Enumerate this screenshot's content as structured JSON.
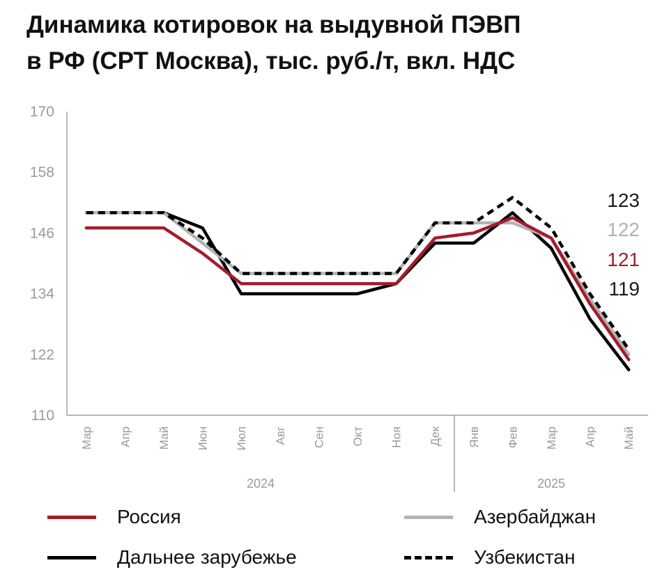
{
  "title_lines": [
    "Динамика котировок на выдувной ПЭВП",
    "в РФ (СРТ Москва), тыс. руб./т, вкл. НДС"
  ],
  "chart_data": {
    "type": "line",
    "title": "Динамика котировок на выдувной ПЭВП в РФ (СРТ Москва), тыс. руб./т, вкл. НДС",
    "categories": [
      "Мар",
      "Апр",
      "Май",
      "Июн",
      "Июл",
      "Авг",
      "Сен",
      "Окт",
      "Ноя",
      "Дек",
      "Янв",
      "Фев",
      "Мар",
      "Апр",
      "Май"
    ],
    "year_groups": [
      {
        "label": "2024",
        "start": 0,
        "end": 9
      },
      {
        "label": "2025",
        "start": 10,
        "end": 14
      }
    ],
    "ylim": [
      110,
      170
    ],
    "yticks": [
      110,
      122,
      134,
      146,
      158,
      170
    ],
    "xlabel": "",
    "ylabel": "",
    "grid": false,
    "series": [
      {
        "name": "Россия",
        "color": "#a31c2b",
        "dash": "solid",
        "values": [
          147,
          147,
          147,
          142,
          136,
          136,
          136,
          136,
          136,
          145,
          146,
          149,
          145,
          132,
          121
        ]
      },
      {
        "name": "Азербайджан",
        "color": "#b3b3b3",
        "dash": "solid",
        "values": [
          150,
          150,
          150,
          144,
          138,
          138,
          138,
          138,
          138,
          148,
          148,
          148,
          145,
          133,
          122
        ]
      },
      {
        "name": "Дальнее зарубежье",
        "color": "#000000",
        "dash": "solid",
        "values": [
          150,
          150,
          150,
          147,
          134,
          134,
          134,
          134,
          136,
          144,
          144,
          150,
          143,
          129,
          119
        ]
      },
      {
        "name": "Узбекистан",
        "color": "#000000",
        "dash": "dashed",
        "values": [
          150,
          150,
          150,
          145,
          138,
          138,
          138,
          138,
          138,
          148,
          148,
          153,
          147,
          134,
          123
        ]
      }
    ],
    "end_labels": [
      {
        "text": "123",
        "color": "#1a1a1a"
      },
      {
        "text": "122",
        "color": "#b3b3b3"
      },
      {
        "text": "121",
        "color": "#a31c2b"
      },
      {
        "text": "119",
        "color": "#1a1a1a"
      }
    ],
    "legend": {
      "placement": "bottom",
      "items": [
        "Россия",
        "Азербайджан",
        "Дальнее зарубежье",
        "Узбекистан"
      ]
    }
  }
}
